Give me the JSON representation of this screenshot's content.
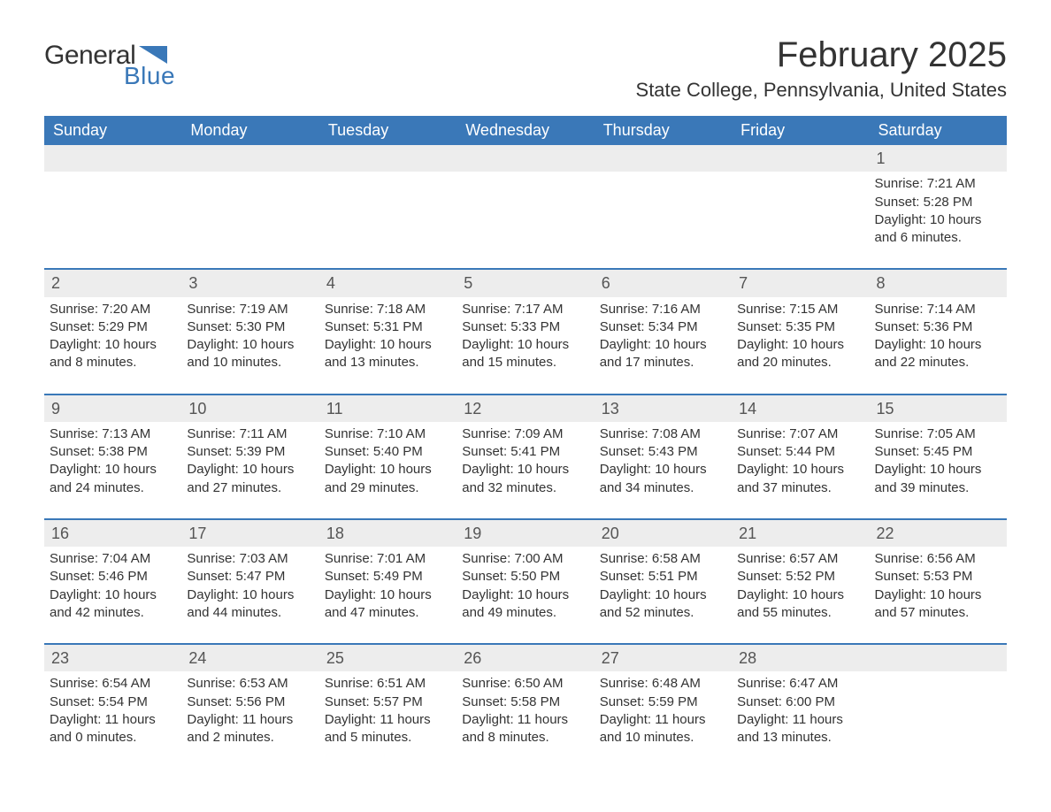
{
  "logo": {
    "text_general": "General",
    "text_blue": "Blue",
    "accent_color": "#3a78b8"
  },
  "header": {
    "month_title": "February 2025",
    "location": "State College, Pennsylvania, United States"
  },
  "calendar": {
    "type": "calendar-table",
    "header_bg": "#3a78b8",
    "header_text_color": "#ffffff",
    "row_divider_color": "#3a78b8",
    "daynum_bg": "#ededed",
    "text_color": "#333333",
    "day_headers": [
      "Sunday",
      "Monday",
      "Tuesday",
      "Wednesday",
      "Thursday",
      "Friday",
      "Saturday"
    ],
    "weeks": [
      [
        null,
        null,
        null,
        null,
        null,
        null,
        {
          "day": "1",
          "sunrise": "Sunrise: 7:21 AM",
          "sunset": "Sunset: 5:28 PM",
          "daylight": "Daylight: 10 hours and 6 minutes."
        }
      ],
      [
        {
          "day": "2",
          "sunrise": "Sunrise: 7:20 AM",
          "sunset": "Sunset: 5:29 PM",
          "daylight": "Daylight: 10 hours and 8 minutes."
        },
        {
          "day": "3",
          "sunrise": "Sunrise: 7:19 AM",
          "sunset": "Sunset: 5:30 PM",
          "daylight": "Daylight: 10 hours and 10 minutes."
        },
        {
          "day": "4",
          "sunrise": "Sunrise: 7:18 AM",
          "sunset": "Sunset: 5:31 PM",
          "daylight": "Daylight: 10 hours and 13 minutes."
        },
        {
          "day": "5",
          "sunrise": "Sunrise: 7:17 AM",
          "sunset": "Sunset: 5:33 PM",
          "daylight": "Daylight: 10 hours and 15 minutes."
        },
        {
          "day": "6",
          "sunrise": "Sunrise: 7:16 AM",
          "sunset": "Sunset: 5:34 PM",
          "daylight": "Daylight: 10 hours and 17 minutes."
        },
        {
          "day": "7",
          "sunrise": "Sunrise: 7:15 AM",
          "sunset": "Sunset: 5:35 PM",
          "daylight": "Daylight: 10 hours and 20 minutes."
        },
        {
          "day": "8",
          "sunrise": "Sunrise: 7:14 AM",
          "sunset": "Sunset: 5:36 PM",
          "daylight": "Daylight: 10 hours and 22 minutes."
        }
      ],
      [
        {
          "day": "9",
          "sunrise": "Sunrise: 7:13 AM",
          "sunset": "Sunset: 5:38 PM",
          "daylight": "Daylight: 10 hours and 24 minutes."
        },
        {
          "day": "10",
          "sunrise": "Sunrise: 7:11 AM",
          "sunset": "Sunset: 5:39 PM",
          "daylight": "Daylight: 10 hours and 27 minutes."
        },
        {
          "day": "11",
          "sunrise": "Sunrise: 7:10 AM",
          "sunset": "Sunset: 5:40 PM",
          "daylight": "Daylight: 10 hours and 29 minutes."
        },
        {
          "day": "12",
          "sunrise": "Sunrise: 7:09 AM",
          "sunset": "Sunset: 5:41 PM",
          "daylight": "Daylight: 10 hours and 32 minutes."
        },
        {
          "day": "13",
          "sunrise": "Sunrise: 7:08 AM",
          "sunset": "Sunset: 5:43 PM",
          "daylight": "Daylight: 10 hours and 34 minutes."
        },
        {
          "day": "14",
          "sunrise": "Sunrise: 7:07 AM",
          "sunset": "Sunset: 5:44 PM",
          "daylight": "Daylight: 10 hours and 37 minutes."
        },
        {
          "day": "15",
          "sunrise": "Sunrise: 7:05 AM",
          "sunset": "Sunset: 5:45 PM",
          "daylight": "Daylight: 10 hours and 39 minutes."
        }
      ],
      [
        {
          "day": "16",
          "sunrise": "Sunrise: 7:04 AM",
          "sunset": "Sunset: 5:46 PM",
          "daylight": "Daylight: 10 hours and 42 minutes."
        },
        {
          "day": "17",
          "sunrise": "Sunrise: 7:03 AM",
          "sunset": "Sunset: 5:47 PM",
          "daylight": "Daylight: 10 hours and 44 minutes."
        },
        {
          "day": "18",
          "sunrise": "Sunrise: 7:01 AM",
          "sunset": "Sunset: 5:49 PM",
          "daylight": "Daylight: 10 hours and 47 minutes."
        },
        {
          "day": "19",
          "sunrise": "Sunrise: 7:00 AM",
          "sunset": "Sunset: 5:50 PM",
          "daylight": "Daylight: 10 hours and 49 minutes."
        },
        {
          "day": "20",
          "sunrise": "Sunrise: 6:58 AM",
          "sunset": "Sunset: 5:51 PM",
          "daylight": "Daylight: 10 hours and 52 minutes."
        },
        {
          "day": "21",
          "sunrise": "Sunrise: 6:57 AM",
          "sunset": "Sunset: 5:52 PM",
          "daylight": "Daylight: 10 hours and 55 minutes."
        },
        {
          "day": "22",
          "sunrise": "Sunrise: 6:56 AM",
          "sunset": "Sunset: 5:53 PM",
          "daylight": "Daylight: 10 hours and 57 minutes."
        }
      ],
      [
        {
          "day": "23",
          "sunrise": "Sunrise: 6:54 AM",
          "sunset": "Sunset: 5:54 PM",
          "daylight": "Daylight: 11 hours and 0 minutes."
        },
        {
          "day": "24",
          "sunrise": "Sunrise: 6:53 AM",
          "sunset": "Sunset: 5:56 PM",
          "daylight": "Daylight: 11 hours and 2 minutes."
        },
        {
          "day": "25",
          "sunrise": "Sunrise: 6:51 AM",
          "sunset": "Sunset: 5:57 PM",
          "daylight": "Daylight: 11 hours and 5 minutes."
        },
        {
          "day": "26",
          "sunrise": "Sunrise: 6:50 AM",
          "sunset": "Sunset: 5:58 PM",
          "daylight": "Daylight: 11 hours and 8 minutes."
        },
        {
          "day": "27",
          "sunrise": "Sunrise: 6:48 AM",
          "sunset": "Sunset: 5:59 PM",
          "daylight": "Daylight: 11 hours and 10 minutes."
        },
        {
          "day": "28",
          "sunrise": "Sunrise: 6:47 AM",
          "sunset": "Sunset: 6:00 PM",
          "daylight": "Daylight: 11 hours and 13 minutes."
        },
        null
      ]
    ]
  }
}
